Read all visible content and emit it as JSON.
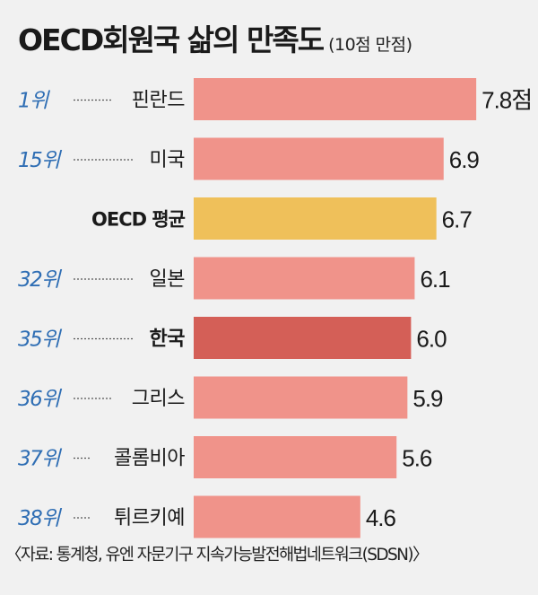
{
  "title": "OECD회원국 삶의 만족도",
  "unit_note": "(10점 만점)",
  "source": "〈자료: 통계청, 유엔 자문기구 지속가능발전해법네트워크(SDSN)〉",
  "colors": {
    "bar": "#f0938a",
    "bar_highlight": "#d45f57",
    "bar_average": "#efc05a",
    "rank": "#2f6eb4",
    "background": "#f1f1f1"
  },
  "chart_data": {
    "type": "bar",
    "orientation": "horizontal",
    "categories": [
      "핀란드",
      "미국",
      "OECD 평균",
      "일본",
      "한국",
      "그리스",
      "콜롬비아",
      "튀르키예"
    ],
    "ranks": [
      "1위",
      "15위",
      "",
      "32위",
      "35위",
      "36위",
      "37위",
      "38위"
    ],
    "values": [
      7.8,
      6.9,
      6.7,
      6.1,
      6.0,
      5.9,
      5.6,
      4.6
    ],
    "value_labels": [
      "7.8점",
      "6.9",
      "6.7",
      "6.1",
      "6.0",
      "5.9",
      "5.6",
      "4.6"
    ],
    "highlight": [
      "한국"
    ],
    "average": [
      "OECD 평균"
    ],
    "xlim": [
      0,
      10
    ]
  }
}
